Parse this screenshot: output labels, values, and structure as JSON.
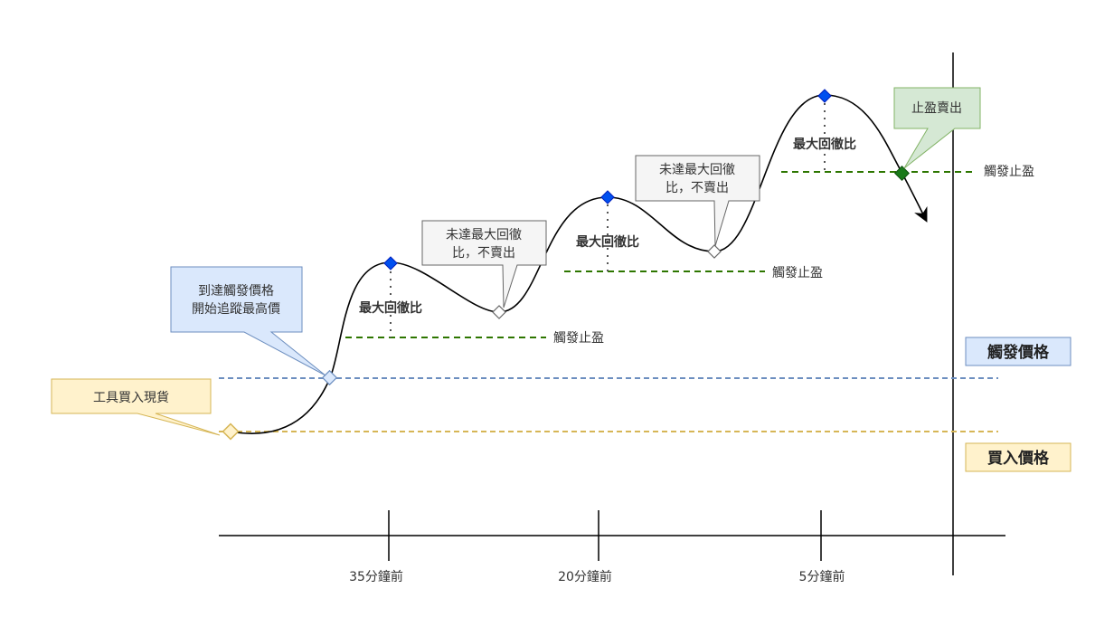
{
  "callouts": {
    "buy": "工具買入現貨",
    "trigger": [
      "到達觸發價格",
      "開始追蹤最高價"
    ],
    "not_reached_1": [
      "未達最大回徹",
      "比，不賣出"
    ],
    "not_reached_2": [
      "未達最大回徹",
      "比，不賣出"
    ],
    "sell": "止盈賣出"
  },
  "labels": {
    "max_retrace_1": "最大回徹比",
    "max_retrace_2": "最大回徹比",
    "max_retrace_3": "最大回徹比",
    "tp_trigger_1": "觸發止盈",
    "tp_trigger_2": "觸發止盈",
    "tp_trigger_3": "觸發止盈",
    "trigger_price": "觸發價格",
    "buy_price": "買入價格"
  },
  "axis": {
    "ticks": [
      "35分鐘前",
      "20分鐘前",
      "5分鐘前"
    ]
  },
  "colors": {
    "curve": "#000000",
    "peak_marker": "#0050ef",
    "trigger_line": "#6c8ebf",
    "buy_line": "#d6b656",
    "tp_line": "#2d7600",
    "sell_marker": "#1a7a1a",
    "callout_yellow_fill": "#fff2cc",
    "callout_blue_fill": "#dae8fc",
    "callout_grey_fill": "#f5f5f5",
    "callout_green_fill": "#d5e8d4"
  }
}
